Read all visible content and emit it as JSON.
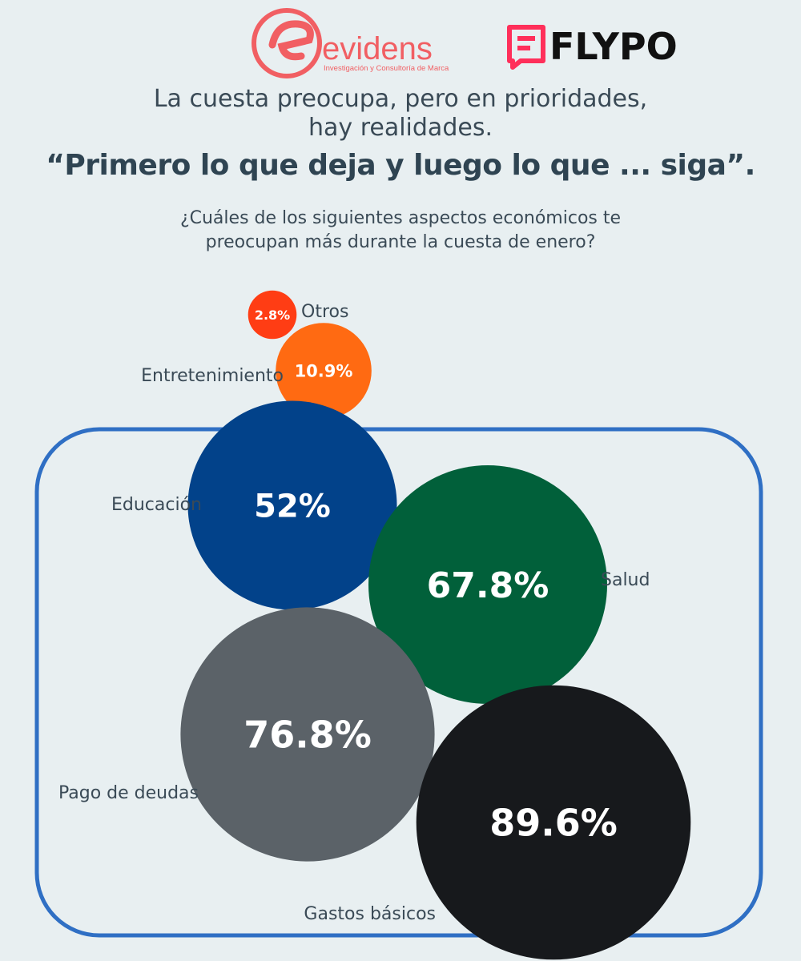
{
  "brand": {
    "evidens_name": "evidens",
    "evidens_tagline": "Investigación y Consultoría de Marca",
    "evidens_color": "#f15f63",
    "flypo_name": "FLYPO",
    "flypo_color": "#ff2f5a"
  },
  "header": {
    "title_line_1": "La cuesta preocupa, pero en prioridades,",
    "title_line_2": "hay realidades.",
    "title_bold": "“Primero lo que deja y luego lo que ... siga”.",
    "question_line_1": "¿Cuáles de los siguientes aspectos económicos te",
    "question_line_2": "preocupan más durante la cuesta de enero?"
  },
  "chart_data": {
    "type": "bubble",
    "series": [
      {
        "name": "Otros",
        "value": 2.8,
        "value_label": "2.8%",
        "color": "#ff3d14"
      },
      {
        "name": "Entretenimiento",
        "value": 10.9,
        "value_label": "10.9%",
        "color": "#ff6a12"
      },
      {
        "name": "Educación",
        "value": 52,
        "value_label": "52%",
        "color": "#02428a"
      },
      {
        "name": "Salud",
        "value": 67.8,
        "value_label": "67.8%",
        "color": "#01603a"
      },
      {
        "name": "Pago de deudas",
        "value": 76.8,
        "value_label": "76.8%",
        "color": "#5b6268"
      },
      {
        "name": "Gastos básicos",
        "value": 89.6,
        "value_label": "89.6%",
        "color": "#17191c"
      }
    ],
    "highlight_frame_color": "#2f6fc4"
  }
}
